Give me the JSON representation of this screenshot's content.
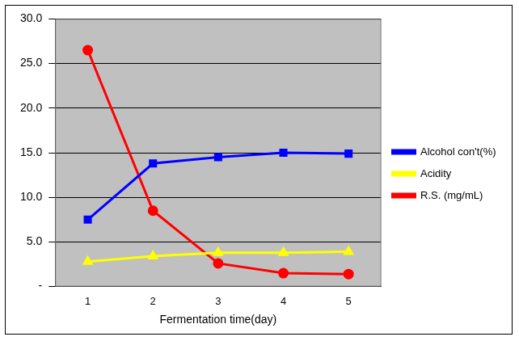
{
  "chart_data": {
    "type": "line",
    "x_label": "Fermentation time(day)",
    "categories": [
      "1",
      "2",
      "3",
      "4",
      "5"
    ],
    "series": [
      {
        "name": "Alcohol con't(%)",
        "color": "#0000FF",
        "marker": "square",
        "values": [
          7.5,
          13.8,
          14.5,
          15.0,
          14.9
        ]
      },
      {
        "name": "Acidity",
        "color": "#FFFF00",
        "marker": "triangle",
        "values": [
          2.8,
          3.4,
          3.8,
          3.8,
          3.9
        ]
      },
      {
        "name": "R.S. (mg/mL)",
        "color": "#FF0000",
        "marker": "circle",
        "values": [
          26.5,
          8.5,
          2.6,
          1.5,
          1.4
        ]
      }
    ],
    "ylim": [
      0,
      30
    ],
    "yticks": [
      {
        "value": 0,
        "label": "-"
      },
      {
        "value": 5,
        "label": "5.0"
      },
      {
        "value": 10,
        "label": "10.0"
      },
      {
        "value": 15,
        "label": "15.0"
      },
      {
        "value": 20,
        "label": "20.0"
      },
      {
        "value": 25,
        "label": "25.0"
      },
      {
        "value": 30,
        "label": "30.0"
      }
    ],
    "grid": true,
    "legend": "right"
  }
}
